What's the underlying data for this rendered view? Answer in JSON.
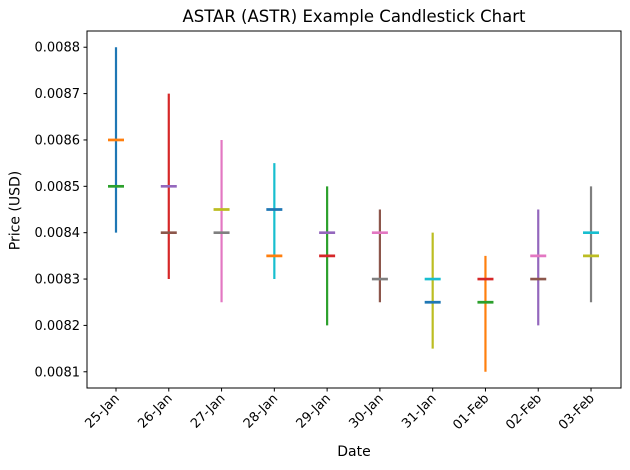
{
  "chart_data": {
    "type": "candlestick",
    "title": "ASTAR (ASTR) Example Candlestick Chart",
    "xlabel": "Date",
    "ylabel": "Price (USD)",
    "categories": [
      "25-Jan",
      "26-Jan",
      "27-Jan",
      "28-Jan",
      "29-Jan",
      "30-Jan",
      "31-Jan",
      "01-Feb",
      "02-Feb",
      "03-Feb"
    ],
    "y_ticks": [
      {
        "value": 0.0081,
        "label": "0.0081"
      },
      {
        "value": 0.0082,
        "label": "0.0082"
      },
      {
        "value": 0.0083,
        "label": "0.0083"
      },
      {
        "value": 0.0084,
        "label": "0.0084"
      },
      {
        "value": 0.0085,
        "label": "0.0085"
      },
      {
        "value": 0.0086,
        "label": "0.0086"
      },
      {
        "value": 0.0087,
        "label": "0.0087"
      },
      {
        "value": 0.0088,
        "label": "0.0088"
      }
    ],
    "ylim": [
      0.008065,
      0.008835
    ],
    "x_tick_rotation_deg": 45,
    "grid": false,
    "legend": "none",
    "axis_color": "#000000",
    "background_color": "#ffffff",
    "series": [
      {
        "date": "25-Jan",
        "open": 0.0086,
        "high": 0.0088,
        "low": 0.0084,
        "close": 0.0085,
        "range_color": "#1f77b4",
        "open_tick_color": "#ff7f0e",
        "close_tick_color": "#2ca02c"
      },
      {
        "date": "26-Jan",
        "open": 0.0085,
        "high": 0.0087,
        "low": 0.0083,
        "close": 0.0084,
        "range_color": "#d62728",
        "open_tick_color": "#9467bd",
        "close_tick_color": "#8c564b"
      },
      {
        "date": "27-Jan",
        "open": 0.0084,
        "high": 0.0086,
        "low": 0.00825,
        "close": 0.00845,
        "range_color": "#e377c2",
        "open_tick_color": "#7f7f7f",
        "close_tick_color": "#bcbd22"
      },
      {
        "date": "28-Jan",
        "open": 0.00845,
        "high": 0.00855,
        "low": 0.0083,
        "close": 0.00835,
        "range_color": "#17becf",
        "open_tick_color": "#1f77b4",
        "close_tick_color": "#ff7f0e"
      },
      {
        "date": "29-Jan",
        "open": 0.00835,
        "high": 0.0085,
        "low": 0.0082,
        "close": 0.0084,
        "range_color": "#2ca02c",
        "open_tick_color": "#d62728",
        "close_tick_color": "#9467bd"
      },
      {
        "date": "30-Jan",
        "open": 0.0084,
        "high": 0.00845,
        "low": 0.00825,
        "close": 0.0083,
        "range_color": "#8c564b",
        "open_tick_color": "#e377c2",
        "close_tick_color": "#7f7f7f"
      },
      {
        "date": "31-Jan",
        "open": 0.0083,
        "high": 0.0084,
        "low": 0.00815,
        "close": 0.00825,
        "range_color": "#bcbd22",
        "open_tick_color": "#17becf",
        "close_tick_color": "#1f77b4"
      },
      {
        "date": "01-Feb",
        "open": 0.00825,
        "high": 0.00835,
        "low": 0.0081,
        "close": 0.0083,
        "range_color": "#ff7f0e",
        "open_tick_color": "#2ca02c",
        "close_tick_color": "#d62728"
      },
      {
        "date": "02-Feb",
        "open": 0.0083,
        "high": 0.00845,
        "low": 0.0082,
        "close": 0.00835,
        "range_color": "#9467bd",
        "open_tick_color": "#8c564b",
        "close_tick_color": "#e377c2"
      },
      {
        "date": "03-Feb",
        "open": 0.00835,
        "high": 0.0085,
        "low": 0.00825,
        "close": 0.0084,
        "range_color": "#7f7f7f",
        "open_tick_color": "#bcbd22",
        "close_tick_color": "#17becf"
      }
    ]
  }
}
